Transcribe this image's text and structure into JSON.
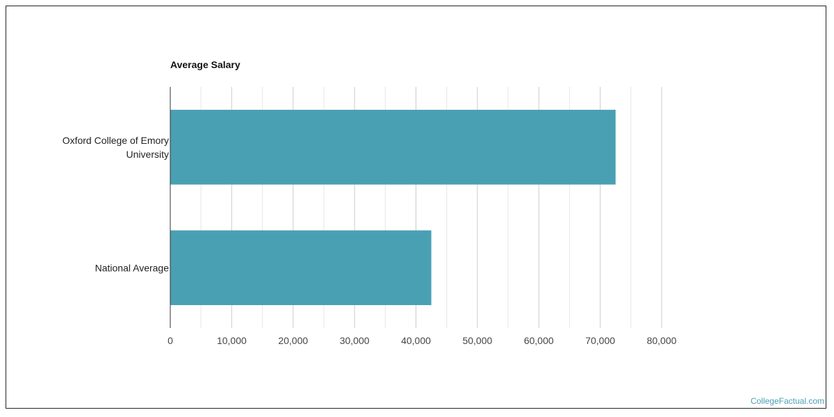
{
  "brand": "CollegeFactual.com",
  "colors": {
    "bar": "#4aa0b3",
    "grid_major": "#cccccc",
    "grid_minor": "#e6e6e6",
    "axis": "#333333",
    "label": "#222222",
    "tick": "#444444"
  },
  "chart_data": {
    "type": "bar",
    "orientation": "horizontal",
    "title": "Average Salary",
    "xlabel": "",
    "ylabel": "",
    "categories": [
      "Oxford College of Emory University",
      "National Average"
    ],
    "category_lines": [
      [
        "Oxford College of Emory",
        "University"
      ],
      [
        "National Average"
      ]
    ],
    "values": [
      72500,
      42500
    ],
    "xlim": [
      0,
      80000
    ],
    "ticks": [
      0,
      10000,
      20000,
      30000,
      40000,
      50000,
      60000,
      70000,
      80000
    ],
    "tick_labels": [
      "0",
      "10,000",
      "20,000",
      "30,000",
      "40,000",
      "50,000",
      "60,000",
      "70,000",
      "80,000"
    ],
    "grid": true,
    "legend": false
  }
}
